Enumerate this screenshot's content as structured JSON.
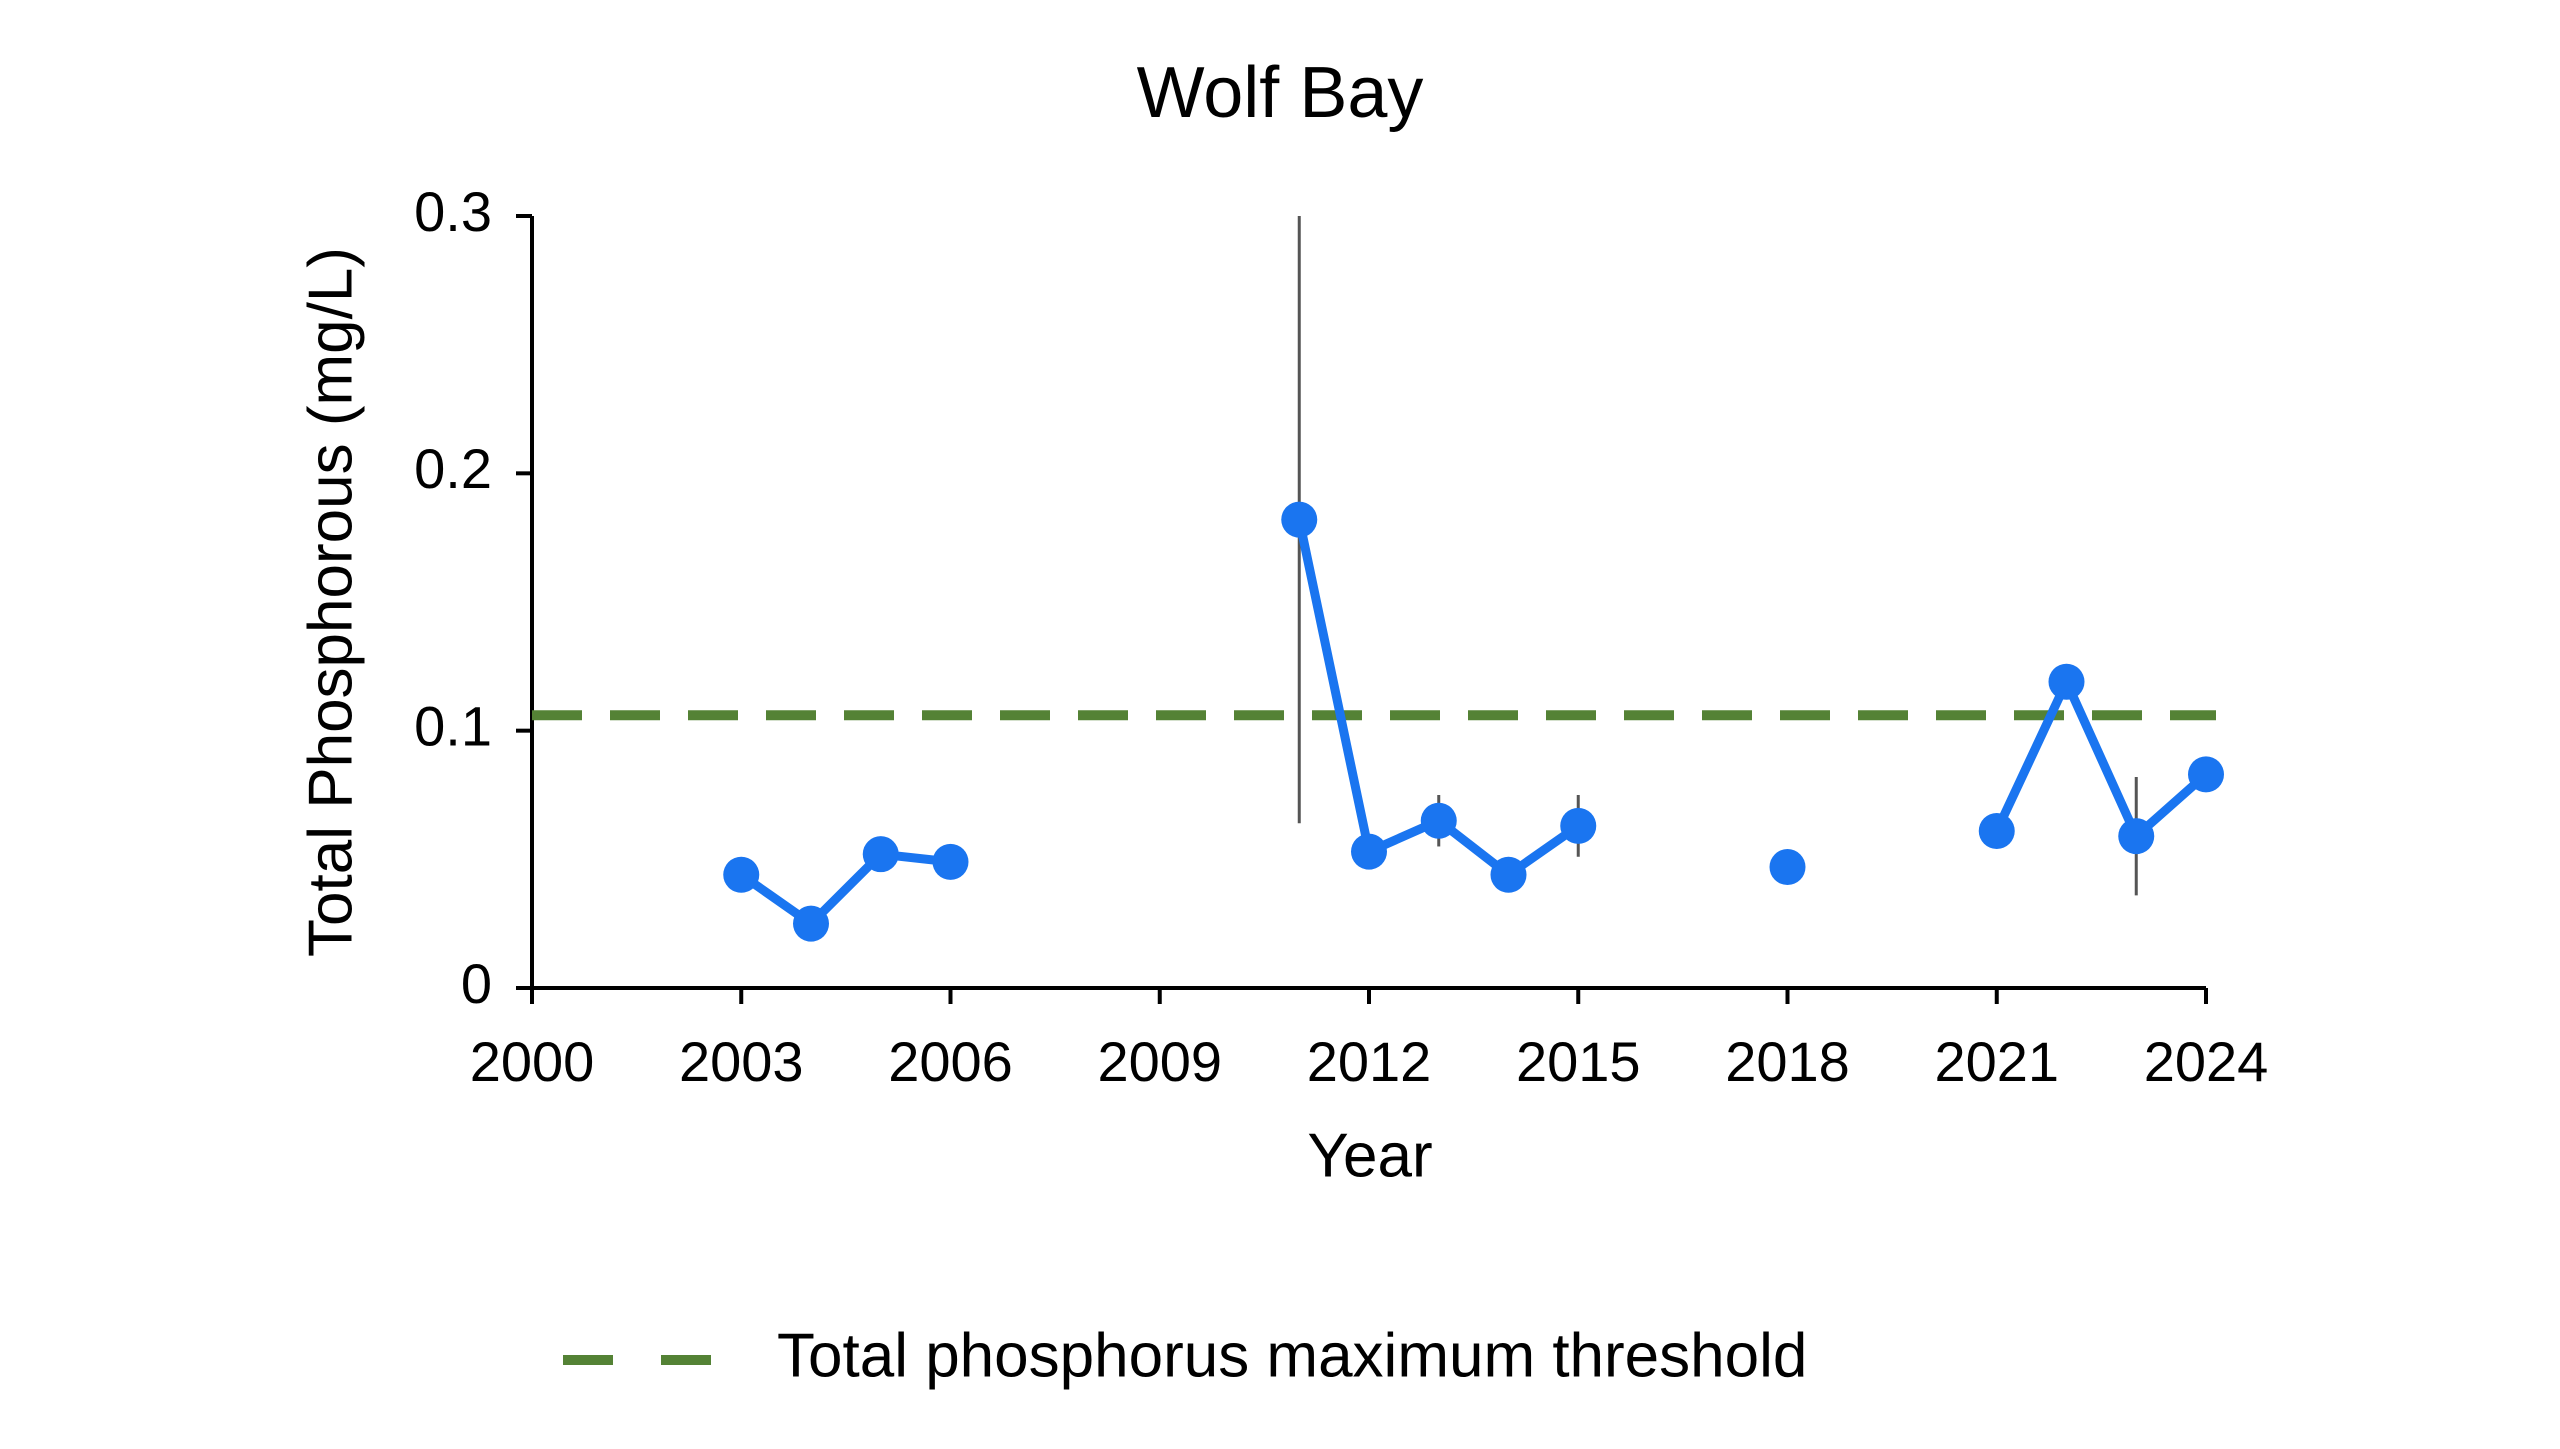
{
  "chart_data": {
    "type": "line",
    "title": "Wolf Bay",
    "x_label": "Year",
    "y_label": "Total Phosphorous (mg/L)",
    "x": [
      2003,
      2004,
      2005,
      2006,
      2007,
      2008,
      2009,
      2010,
      2011,
      2012,
      2013,
      2014,
      2015,
      2016,
      2017,
      2018,
      2019,
      2020,
      2021,
      2022,
      2023,
      2024
    ],
    "values": [
      0.044,
      0.025,
      0.052,
      0.049,
      null,
      null,
      null,
      null,
      0.182,
      0.053,
      0.065,
      0.044,
      0.063,
      null,
      null,
      0.047,
      null,
      null,
      0.061,
      0.119,
      0.059,
      0.083
    ],
    "errors": [
      null,
      null,
      null,
      null,
      null,
      null,
      null,
      null,
      0.118,
      null,
      0.01,
      null,
      0.012,
      null,
      null,
      null,
      null,
      null,
      null,
      null,
      0.023,
      null
    ],
    "color": "#1a75f0",
    "threshold": {
      "name": "Total phosphorus maximum threshold",
      "value": 0.106,
      "color": "#548235"
    },
    "xlim": [
      2000,
      2024
    ],
    "xticks": [
      2000,
      2003,
      2006,
      2009,
      2012,
      2015,
      2018,
      2021,
      2024
    ],
    "ylim": [
      0,
      0.3
    ],
    "yticks": [
      0,
      0.1,
      0.2,
      0.3
    ]
  }
}
